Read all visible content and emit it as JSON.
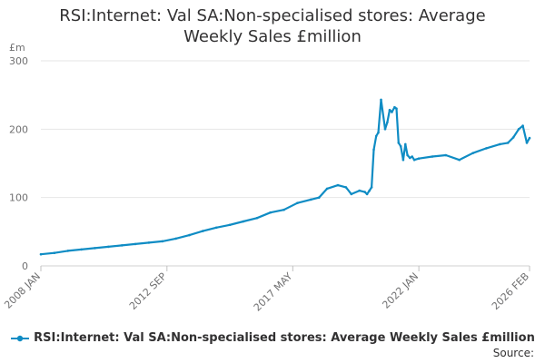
{
  "chart_data": {
    "type": "line",
    "title": "RSI:Internet: Val SA:Non-specialised stores: Average Weekly Sales £million",
    "ylabel": "£m",
    "xlabel": "",
    "ylim": [
      0,
      300
    ],
    "yticks": [
      0,
      100,
      200,
      300
    ],
    "xticks": [
      "2008 JAN",
      "2012 SEP",
      "2017 MAY",
      "2022 JAN",
      "2026 FEB"
    ],
    "grid": true,
    "legend": "bottom-center",
    "line_color": "#0f8cc4",
    "series": [
      {
        "name": "RSI:Internet: Val SA:Non-specialised stores: Average Weekly Sales £million",
        "x": [
          2008.0,
          2008.5,
          2009.0,
          2009.5,
          2010.0,
          2010.5,
          2011.0,
          2011.5,
          2012.0,
          2012.5,
          2013.0,
          2013.5,
          2014.0,
          2014.5,
          2015.0,
          2015.5,
          2016.0,
          2016.5,
          2017.0,
          2017.5,
          2018.0,
          2018.3,
          2018.6,
          2019.0,
          2019.3,
          2019.5,
          2019.8,
          2020.0,
          2020.08,
          2020.17,
          2020.25,
          2020.33,
          2020.42,
          2020.5,
          2020.6,
          2020.75,
          2020.83,
          2020.92,
          2021.0,
          2021.1,
          2021.17,
          2021.25,
          2021.33,
          2021.42,
          2021.5,
          2021.58,
          2021.67,
          2021.75,
          2021.83,
          2022.0,
          2022.5,
          2023.0,
          2023.5,
          2024.0,
          2024.5,
          2025.0,
          2025.3,
          2025.5,
          2025.7,
          2025.85,
          2026.0,
          2026.1
        ],
        "values": [
          17,
          19,
          22,
          24,
          26,
          28,
          30,
          32,
          34,
          36,
          40,
          45,
          51,
          56,
          60,
          65,
          70,
          78,
          82,
          92,
          97,
          100,
          113,
          118,
          115,
          105,
          110,
          108,
          105,
          110,
          115,
          170,
          190,
          195,
          243,
          200,
          210,
          228,
          225,
          232,
          230,
          180,
          175,
          155,
          178,
          162,
          158,
          160,
          155,
          157,
          160,
          162,
          155,
          165,
          172,
          178,
          180,
          188,
          200,
          205,
          180,
          187
        ]
      }
    ]
  },
  "source_label": "Source:"
}
